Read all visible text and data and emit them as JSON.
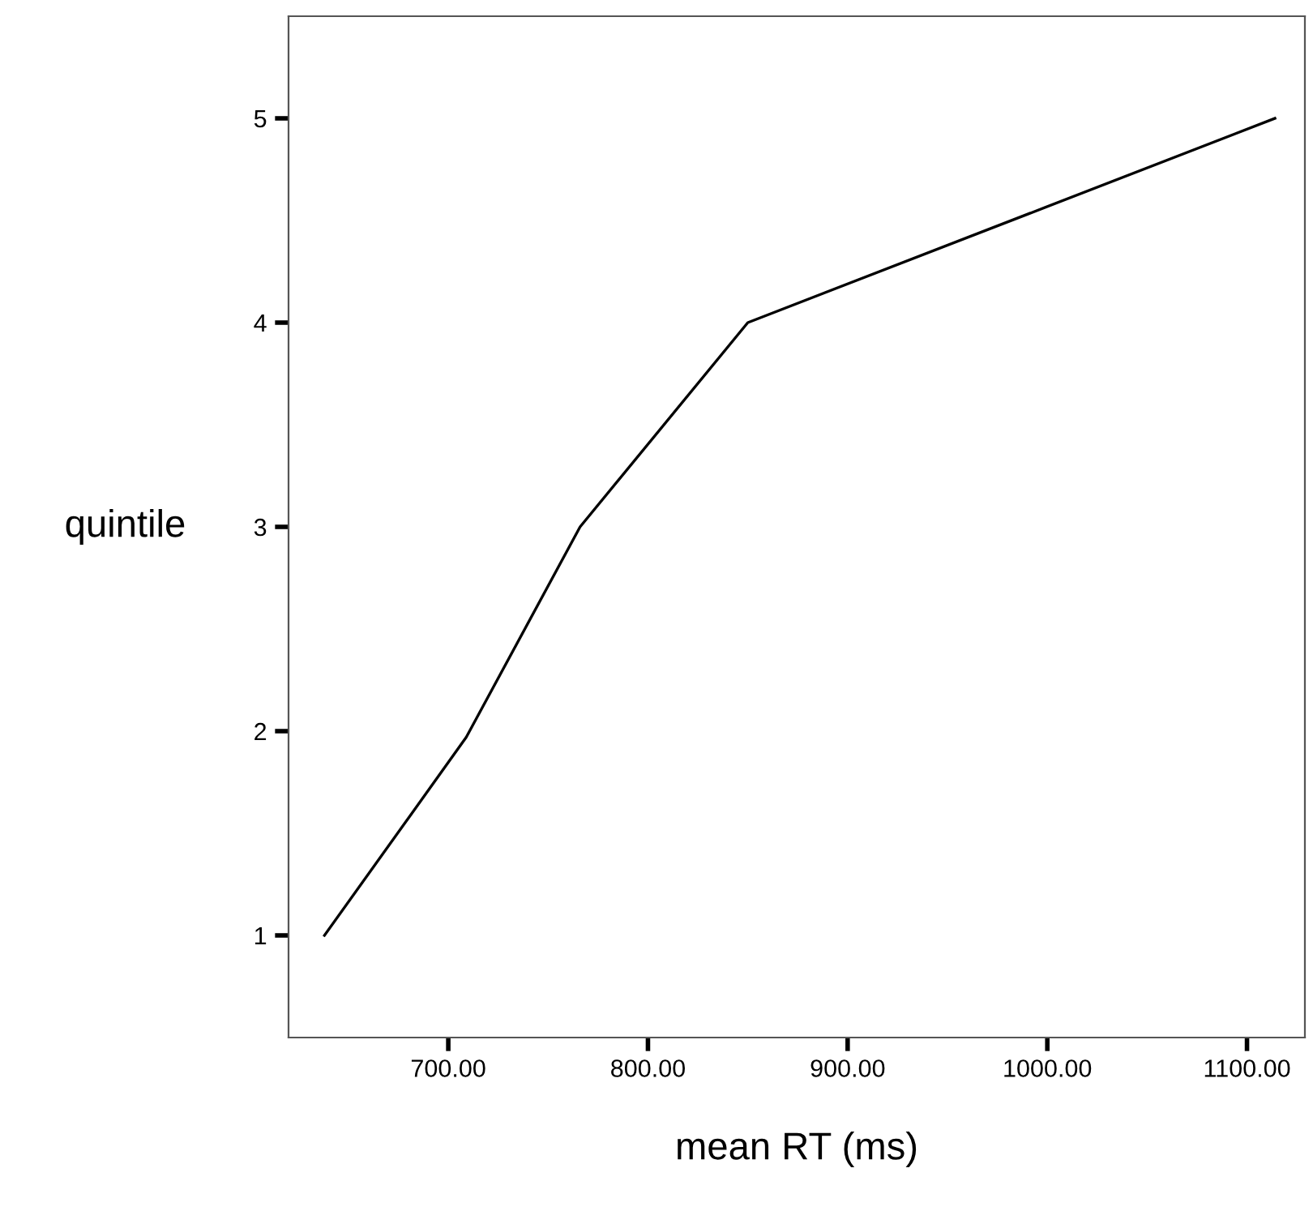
{
  "chart_data": {
    "type": "line",
    "xlabel": "mean RT (ms)",
    "ylabel": "quintile",
    "x": [
      638,
      709,
      766,
      850,
      1114
    ],
    "series": [
      {
        "color": "#000000",
        "values": [
          1,
          1.97,
          3,
          4,
          5
        ]
      }
    ],
    "xlim": [
      620,
      1129
    ],
    "ylim": [
      0.5,
      5.5
    ],
    "xticks": [
      {
        "value": 700,
        "label": "700.00"
      },
      {
        "value": 800,
        "label": "800.00"
      },
      {
        "value": 900,
        "label": "900.00"
      },
      {
        "value": 1000,
        "label": "1000.00"
      },
      {
        "value": 1100,
        "label": "1100.00"
      }
    ],
    "yticks": [
      1,
      2,
      3,
      4,
      5
    ],
    "grid": false,
    "legend": false,
    "marker": "none",
    "line_style": "solid"
  }
}
